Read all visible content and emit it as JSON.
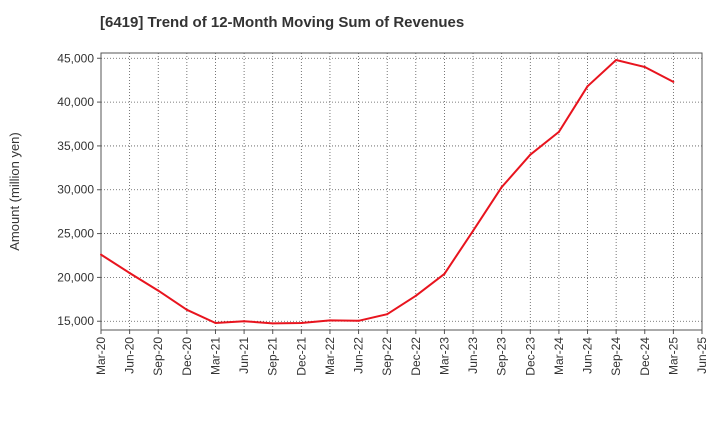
{
  "chart_data": {
    "type": "line",
    "title": "[6419]  Trend of 12-Month Moving Sum of Revenues",
    "xlabel": "",
    "ylabel": "Amount (million yen)",
    "ylim": [
      14000,
      45600
    ],
    "yticks": [
      15000,
      20000,
      25000,
      30000,
      35000,
      40000,
      45000
    ],
    "ytick_labels": [
      "15,000",
      "20,000",
      "25,000",
      "30,000",
      "35,000",
      "40,000",
      "45,000"
    ],
    "xtick_labels": [
      "Mar-20",
      "Jun-20",
      "Sep-20",
      "Dec-20",
      "Mar-21",
      "Jun-21",
      "Sep-21",
      "Dec-21",
      "Mar-22",
      "Jun-22",
      "Sep-22",
      "Dec-22",
      "Mar-23",
      "Jun-23",
      "Sep-23",
      "Dec-23",
      "Mar-24",
      "Jun-24",
      "Sep-24",
      "Dec-24",
      "Mar-25",
      "Jun-25"
    ],
    "x": [
      "Mar-20",
      "Jun-20",
      "Sep-20",
      "Dec-20",
      "Mar-21",
      "Jun-21",
      "Sep-21",
      "Dec-21",
      "Mar-22",
      "Jun-22",
      "Sep-22",
      "Dec-22",
      "Mar-23",
      "Jun-23",
      "Sep-23",
      "Dec-23",
      "Mar-24",
      "Jun-24",
      "Sep-24",
      "Dec-24",
      "Mar-25"
    ],
    "series": [
      {
        "values": [
          22600,
          20500,
          18500,
          16300,
          14800,
          15000,
          14750,
          14800,
          15100,
          15050,
          15800,
          17900,
          20400,
          25300,
          30300,
          34000,
          36600,
          41800,
          44800,
          44000,
          42300
        ]
      }
    ],
    "grid": true,
    "line_color": "#e8141e"
  }
}
